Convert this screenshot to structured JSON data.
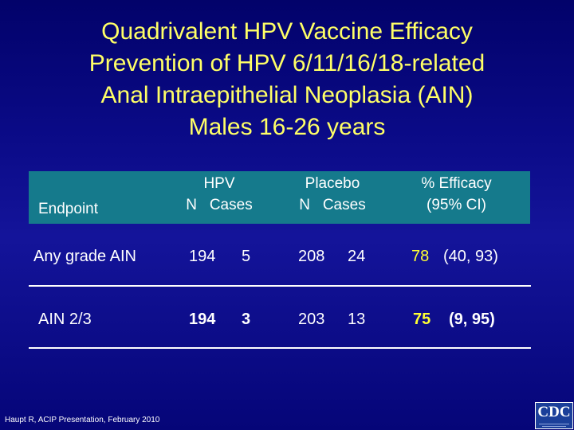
{
  "title": {
    "lines": [
      "Quadrivalent HPV Vaccine Efficacy",
      "Prevention of HPV 6/11/16/18-related",
      "Anal Intraepithelial Neoplasia (AIN)",
      "Males 16-26 years"
    ]
  },
  "table": {
    "header": {
      "endpoint": "Endpoint",
      "hpv_group": "HPV",
      "hpv_cols": "N   Cases",
      "placebo_group": "Placebo",
      "placebo_cols": "N   Cases",
      "efficacy_group": "% Efficacy",
      "efficacy_ci": "(95% CI)"
    },
    "rows": [
      {
        "endpoint": "Any grade AIN",
        "hpv_n": "194",
        "hpv_cases": "5",
        "placebo_n": "208",
        "placebo_cases": "24",
        "efficacy": "78",
        "ci": "(40, 93)"
      },
      {
        "endpoint": "AIN 2/3",
        "hpv_n": "194",
        "hpv_cases": "3",
        "placebo_n": "203",
        "placebo_cases": "13",
        "efficacy": "75",
        "ci": "(9, 95)"
      }
    ]
  },
  "footnote": "Haupt R, ACIP Presentation, February 2010",
  "logo": {
    "text": "CDC"
  },
  "colors": {
    "background": "#0a0a86",
    "title": "#ffff66",
    "header_band": "#157a8c",
    "highlight": "#ffff33",
    "text": "#ffffff"
  }
}
